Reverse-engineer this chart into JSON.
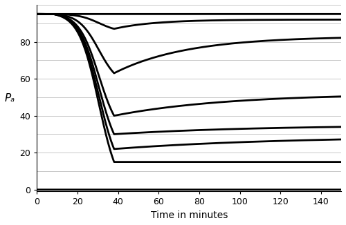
{
  "xlabel": "Time in minutes",
  "ylabel": "Pₐ",
  "xlim": [
    0,
    150
  ],
  "ylim": [
    -1,
    100
  ],
  "xticks": [
    0,
    20,
    40,
    60,
    80,
    100,
    120,
    140
  ],
  "yticks": [
    0,
    10,
    20,
    30,
    40,
    50,
    60,
    70,
    80,
    90,
    100
  ],
  "background_color": "#ffffff",
  "line_color": "#000000",
  "line_width": 2.0,
  "curve_defs": [
    {
      "start": 95,
      "flat": true,
      "asymptote": 95
    },
    {
      "start": 95,
      "min_val": 87,
      "min_time": 38,
      "asymptote": 92,
      "recovery_rate": 0.05,
      "drop_onset": 8
    },
    {
      "start": 95,
      "min_val": 63,
      "min_time": 38,
      "asymptote": 83,
      "recovery_rate": 0.028,
      "drop_onset": 8
    },
    {
      "start": 95,
      "min_val": 40,
      "min_time": 38,
      "asymptote": 52,
      "recovery_rate": 0.018,
      "drop_onset": 8
    },
    {
      "start": 95,
      "min_val": 30,
      "min_time": 38,
      "asymptote": 35,
      "recovery_rate": 0.014,
      "drop_onset": 8
    },
    {
      "start": 95,
      "min_val": 22,
      "min_time": 38,
      "asymptote": 29,
      "recovery_rate": 0.012,
      "drop_onset": 8
    },
    {
      "start": 95,
      "min_val": 15,
      "min_time": 38,
      "asymptote": 15,
      "recovery_rate": 0.0,
      "drop_onset": 8,
      "dies": true
    },
    {
      "start": 0,
      "flat": true,
      "asymptote": 0
    }
  ]
}
